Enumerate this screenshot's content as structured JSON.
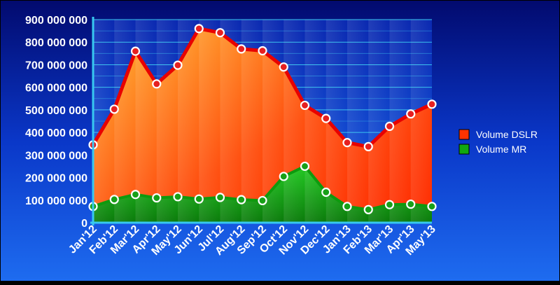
{
  "chart_data": {
    "type": "area",
    "title": "",
    "xlabel": "",
    "ylabel": "",
    "categories": [
      "Jan'12",
      "Feb'12",
      "Mar'12",
      "Apr'12",
      "May'12",
      "Jun'12",
      "Jul'12",
      "Aug'12",
      "Sep'12",
      "Oct'12",
      "Nov'12",
      "Dec'12",
      "Jan'13",
      "Feb'13",
      "Mar'13",
      "Apr'13",
      "May'13"
    ],
    "series": [
      {
        "name": "Volume DSLR",
        "color": "#ff3300",
        "values": [
          345000000,
          503000000,
          760000000,
          615000000,
          698000000,
          860000000,
          842000000,
          770000000,
          762000000,
          690000000,
          520000000,
          462000000,
          355000000,
          337000000,
          427000000,
          482000000,
          525000000
        ]
      },
      {
        "name": "Volume MR",
        "color": "#11a811",
        "values": [
          72000000,
          103000000,
          125000000,
          110000000,
          115000000,
          105000000,
          112000000,
          102000000,
          98000000,
          205000000,
          250000000,
          135000000,
          72000000,
          58000000,
          80000000,
          82000000,
          72000000
        ]
      }
    ],
    "ylim": [
      0,
      900000000
    ],
    "yticks": [
      0,
      100000000,
      200000000,
      300000000,
      400000000,
      500000000,
      600000000,
      700000000,
      800000000,
      900000000
    ],
    "ytick_labels": [
      "0",
      "100 000 000",
      "200 000 000",
      "300 000 000",
      "400 000 000",
      "500 000 000",
      "600 000 000",
      "700 000 000",
      "800 000 000",
      "900 000 000"
    ],
    "grid": true,
    "legend": {
      "position": "right",
      "entries": [
        "Volume DSLR",
        "Volume MR"
      ]
    }
  }
}
